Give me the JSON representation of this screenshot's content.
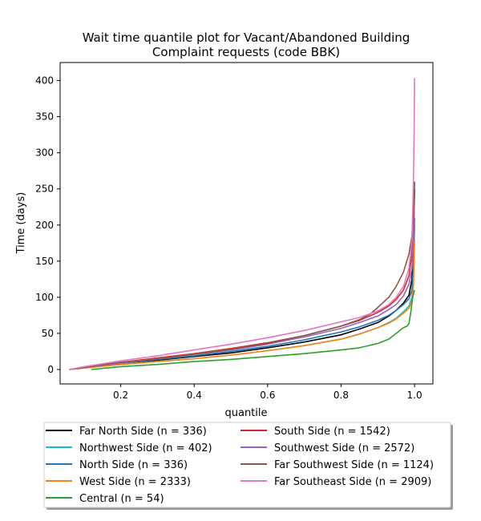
{
  "chart_data": {
    "type": "line",
    "title_line1": "Wait time quantile plot for Vacant/Abandoned Building",
    "title_line2": "Complaint  requests (code BBK)",
    "xlabel": "quantile",
    "ylabel": "Time (days)",
    "xlim": [
      0.035,
      1.05
    ],
    "ylim": [
      -20,
      425
    ],
    "xticks": [
      0.2,
      0.4,
      0.6,
      0.8,
      1.0
    ],
    "xtick_labels": [
      "0.2",
      "0.4",
      "0.6",
      "0.8",
      "1.0"
    ],
    "yticks": [
      0,
      50,
      100,
      150,
      200,
      250,
      300,
      350,
      400
    ],
    "ytick_labels": [
      "0",
      "50",
      "100",
      "150",
      "200",
      "250",
      "300",
      "350",
      "400"
    ],
    "grid": false,
    "legend_placement": "below-plot, two columns",
    "series": [
      {
        "name": "Far North Side (n = 336)",
        "color": "#000000",
        "points": [
          [
            0.06,
            0
          ],
          [
            0.1,
            3
          ],
          [
            0.2,
            9
          ],
          [
            0.3,
            13
          ],
          [
            0.4,
            18
          ],
          [
            0.5,
            23
          ],
          [
            0.6,
            30
          ],
          [
            0.7,
            38
          ],
          [
            0.8,
            48
          ],
          [
            0.85,
            56
          ],
          [
            0.9,
            65
          ],
          [
            0.93,
            74
          ],
          [
            0.95,
            82
          ],
          [
            0.97,
            92
          ],
          [
            0.985,
            103
          ],
          [
            0.993,
            125
          ],
          [
            0.997,
            180
          ],
          [
            1.0,
            250
          ]
        ]
      },
      {
        "name": "Northwest Side (n = 402)",
        "color": "#17becf",
        "points": [
          [
            0.06,
            0
          ],
          [
            0.1,
            2
          ],
          [
            0.2,
            7
          ],
          [
            0.3,
            11
          ],
          [
            0.4,
            15
          ],
          [
            0.5,
            20
          ],
          [
            0.6,
            26
          ],
          [
            0.7,
            33
          ],
          [
            0.8,
            42
          ],
          [
            0.85,
            49
          ],
          [
            0.9,
            58
          ],
          [
            0.93,
            65
          ],
          [
            0.95,
            71
          ],
          [
            0.97,
            80
          ],
          [
            0.985,
            88
          ],
          [
            0.993,
            100
          ],
          [
            0.997,
            130
          ],
          [
            1.0,
            200
          ]
        ]
      },
      {
        "name": "North Side (n = 336)",
        "color": "#1f77b4",
        "points": [
          [
            0.06,
            0
          ],
          [
            0.1,
            3
          ],
          [
            0.2,
            9
          ],
          [
            0.3,
            14
          ],
          [
            0.4,
            19
          ],
          [
            0.5,
            25
          ],
          [
            0.6,
            32
          ],
          [
            0.7,
            41
          ],
          [
            0.8,
            52
          ],
          [
            0.85,
            59
          ],
          [
            0.9,
            68
          ],
          [
            0.93,
            75
          ],
          [
            0.95,
            82
          ],
          [
            0.97,
            90
          ],
          [
            0.985,
            98
          ],
          [
            0.993,
            110
          ],
          [
            0.997,
            140
          ],
          [
            1.0,
            210
          ]
        ]
      },
      {
        "name": "West Side (n = 2333)",
        "color": "#ff7f0e",
        "points": [
          [
            0.06,
            0
          ],
          [
            0.1,
            2
          ],
          [
            0.2,
            7
          ],
          [
            0.3,
            11
          ],
          [
            0.4,
            15
          ],
          [
            0.5,
            20
          ],
          [
            0.6,
            26
          ],
          [
            0.7,
            33
          ],
          [
            0.8,
            42
          ],
          [
            0.85,
            49
          ],
          [
            0.9,
            58
          ],
          [
            0.93,
            64
          ],
          [
            0.95,
            70
          ],
          [
            0.97,
            78
          ],
          [
            0.985,
            85
          ],
          [
            0.993,
            95
          ],
          [
            0.997,
            115
          ],
          [
            1.0,
            180
          ]
        ]
      },
      {
        "name": "Central (n = 54)",
        "color": "#2ca02c",
        "points": [
          [
            0.12,
            0
          ],
          [
            0.2,
            4
          ],
          [
            0.3,
            7
          ],
          [
            0.4,
            11
          ],
          [
            0.5,
            14
          ],
          [
            0.6,
            18
          ],
          [
            0.7,
            22
          ],
          [
            0.8,
            27
          ],
          [
            0.85,
            30
          ],
          [
            0.9,
            36
          ],
          [
            0.93,
            42
          ],
          [
            0.95,
            50
          ],
          [
            0.97,
            58
          ],
          [
            0.98,
            60
          ],
          [
            0.985,
            64
          ],
          [
            0.99,
            80
          ],
          [
            0.995,
            100
          ],
          [
            1.0,
            110
          ]
        ]
      },
      {
        "name": "South Side (n = 1542)",
        "color": "#d62728",
        "points": [
          [
            0.06,
            0
          ],
          [
            0.1,
            3
          ],
          [
            0.2,
            10
          ],
          [
            0.3,
            16
          ],
          [
            0.4,
            22
          ],
          [
            0.5,
            29
          ],
          [
            0.6,
            37
          ],
          [
            0.7,
            47
          ],
          [
            0.8,
            60
          ],
          [
            0.85,
            68
          ],
          [
            0.9,
            79
          ],
          [
            0.93,
            88
          ],
          [
            0.95,
            97
          ],
          [
            0.97,
            110
          ],
          [
            0.985,
            130
          ],
          [
            0.993,
            160
          ],
          [
            0.997,
            200
          ],
          [
            1.0,
            260
          ]
        ]
      },
      {
        "name": "Southwest Side (n = 2572)",
        "color": "#9467bd",
        "points": [
          [
            0.06,
            0
          ],
          [
            0.1,
            3
          ],
          [
            0.2,
            9
          ],
          [
            0.3,
            15
          ],
          [
            0.4,
            21
          ],
          [
            0.5,
            27
          ],
          [
            0.6,
            35
          ],
          [
            0.7,
            45
          ],
          [
            0.8,
            57
          ],
          [
            0.85,
            65
          ],
          [
            0.9,
            74
          ],
          [
            0.93,
            83
          ],
          [
            0.95,
            90
          ],
          [
            0.97,
            102
          ],
          [
            0.985,
            118
          ],
          [
            0.993,
            140
          ],
          [
            0.997,
            180
          ],
          [
            1.0,
            240
          ]
        ]
      },
      {
        "name": "Far Southwest Side (n = 1124)",
        "color": "#8c564b",
        "points": [
          [
            0.06,
            0
          ],
          [
            0.1,
            3
          ],
          [
            0.2,
            10
          ],
          [
            0.3,
            15
          ],
          [
            0.4,
            21
          ],
          [
            0.5,
            28
          ],
          [
            0.6,
            36
          ],
          [
            0.7,
            47
          ],
          [
            0.8,
            60
          ],
          [
            0.85,
            69
          ],
          [
            0.88,
            77
          ],
          [
            0.9,
            86
          ],
          [
            0.93,
            100
          ],
          [
            0.95,
            115
          ],
          [
            0.97,
            135
          ],
          [
            0.985,
            160
          ],
          [
            0.993,
            185
          ],
          [
            0.997,
            215
          ],
          [
            1.0,
            260
          ]
        ]
      },
      {
        "name": "Far Southeast Side (n = 2909)",
        "color": "#e377c2",
        "points": [
          [
            0.06,
            0
          ],
          [
            0.1,
            4
          ],
          [
            0.2,
            12
          ],
          [
            0.3,
            19
          ],
          [
            0.4,
            27
          ],
          [
            0.5,
            35
          ],
          [
            0.6,
            44
          ],
          [
            0.7,
            54
          ],
          [
            0.8,
            66
          ],
          [
            0.85,
            72
          ],
          [
            0.9,
            81
          ],
          [
            0.93,
            90
          ],
          [
            0.95,
            100
          ],
          [
            0.97,
            115
          ],
          [
            0.985,
            140
          ],
          [
            0.993,
            180
          ],
          [
            0.997,
            260
          ],
          [
            0.999,
            330
          ],
          [
            1.0,
            403
          ]
        ]
      }
    ]
  }
}
